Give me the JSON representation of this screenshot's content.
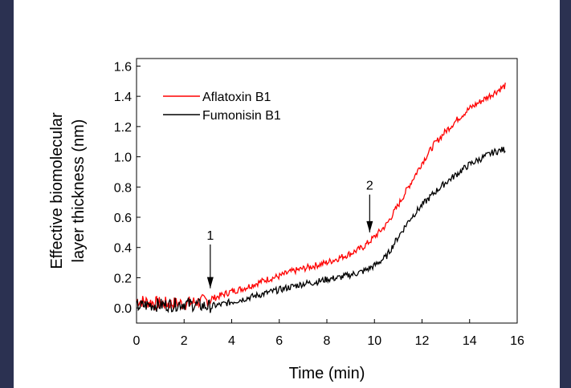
{
  "colors": {
    "background_outer": "#2b3151",
    "panel": "#ffffff",
    "series_aflatoxin": "#ff0000",
    "series_fumonisin": "#000000"
  },
  "chart_data": {
    "type": "line",
    "title": "",
    "xlabel": "Time (min)",
    "ylabel_lines": [
      "Effective biomolecular",
      "layer thickness (nm)"
    ],
    "xlim": [
      0,
      16
    ],
    "ylim": [
      -0.1,
      1.65
    ],
    "xticks": [
      0,
      2,
      4,
      6,
      8,
      10,
      12,
      14,
      16
    ],
    "xtick_labels": [
      "0",
      "2",
      "4",
      "6",
      "8",
      "10",
      "12",
      "14",
      "16"
    ],
    "yticks": [
      0.0,
      0.2,
      0.4,
      0.6,
      0.8,
      1.0,
      1.2,
      1.4,
      1.6
    ],
    "ytick_labels": [
      "0.0",
      "0.2",
      "0.4",
      "0.6",
      "0.8",
      "1.0",
      "1.2",
      "1.4",
      "1.6"
    ],
    "grid": false,
    "legend_position": "top-left",
    "series": [
      {
        "name": "Aflatoxin B1",
        "color": "#ff0000",
        "x": [
          0,
          0.5,
          1,
          1.5,
          2,
          2.5,
          3,
          3.5,
          4,
          4.5,
          5,
          5.5,
          6,
          6.5,
          7,
          7.5,
          8,
          8.5,
          9,
          9.5,
          9.8,
          10,
          10.5,
          11,
          11.5,
          12,
          12.5,
          13,
          13.5,
          14,
          14.5,
          15,
          15.5
        ],
        "y": [
          0.05,
          0.04,
          0.03,
          0.03,
          0.03,
          0.04,
          0.05,
          0.08,
          0.11,
          0.13,
          0.16,
          0.19,
          0.21,
          0.24,
          0.26,
          0.28,
          0.3,
          0.33,
          0.36,
          0.4,
          0.44,
          0.47,
          0.55,
          0.68,
          0.82,
          0.96,
          1.08,
          1.17,
          1.25,
          1.32,
          1.37,
          1.42,
          1.47
        ]
      },
      {
        "name": "Fumonisin B1",
        "color": "#000000",
        "x": [
          0,
          0.5,
          1,
          1.5,
          2,
          2.5,
          3,
          3.5,
          4,
          4.5,
          5,
          5.5,
          6,
          6.5,
          7,
          7.5,
          8,
          8.5,
          9,
          9.5,
          10,
          10.5,
          11,
          11.5,
          12,
          12.5,
          13,
          13.5,
          14,
          14.5,
          15,
          15.5
        ],
        "y": [
          0.01,
          0.02,
          0.02,
          0.02,
          0.03,
          0.02,
          0.01,
          0.02,
          0.04,
          0.06,
          0.08,
          0.1,
          0.12,
          0.14,
          0.16,
          0.17,
          0.19,
          0.2,
          0.22,
          0.24,
          0.28,
          0.34,
          0.47,
          0.59,
          0.68,
          0.76,
          0.83,
          0.89,
          0.95,
          0.99,
          1.03,
          1.05
        ]
      }
    ],
    "annotations": [
      {
        "label": "1",
        "x": 3.1,
        "arrow_top_y": 0.42,
        "arrow_tip_y": 0.13
      },
      {
        "label": "2",
        "x": 9.8,
        "arrow_top_y": 0.75,
        "arrow_tip_y": 0.5
      }
    ]
  }
}
